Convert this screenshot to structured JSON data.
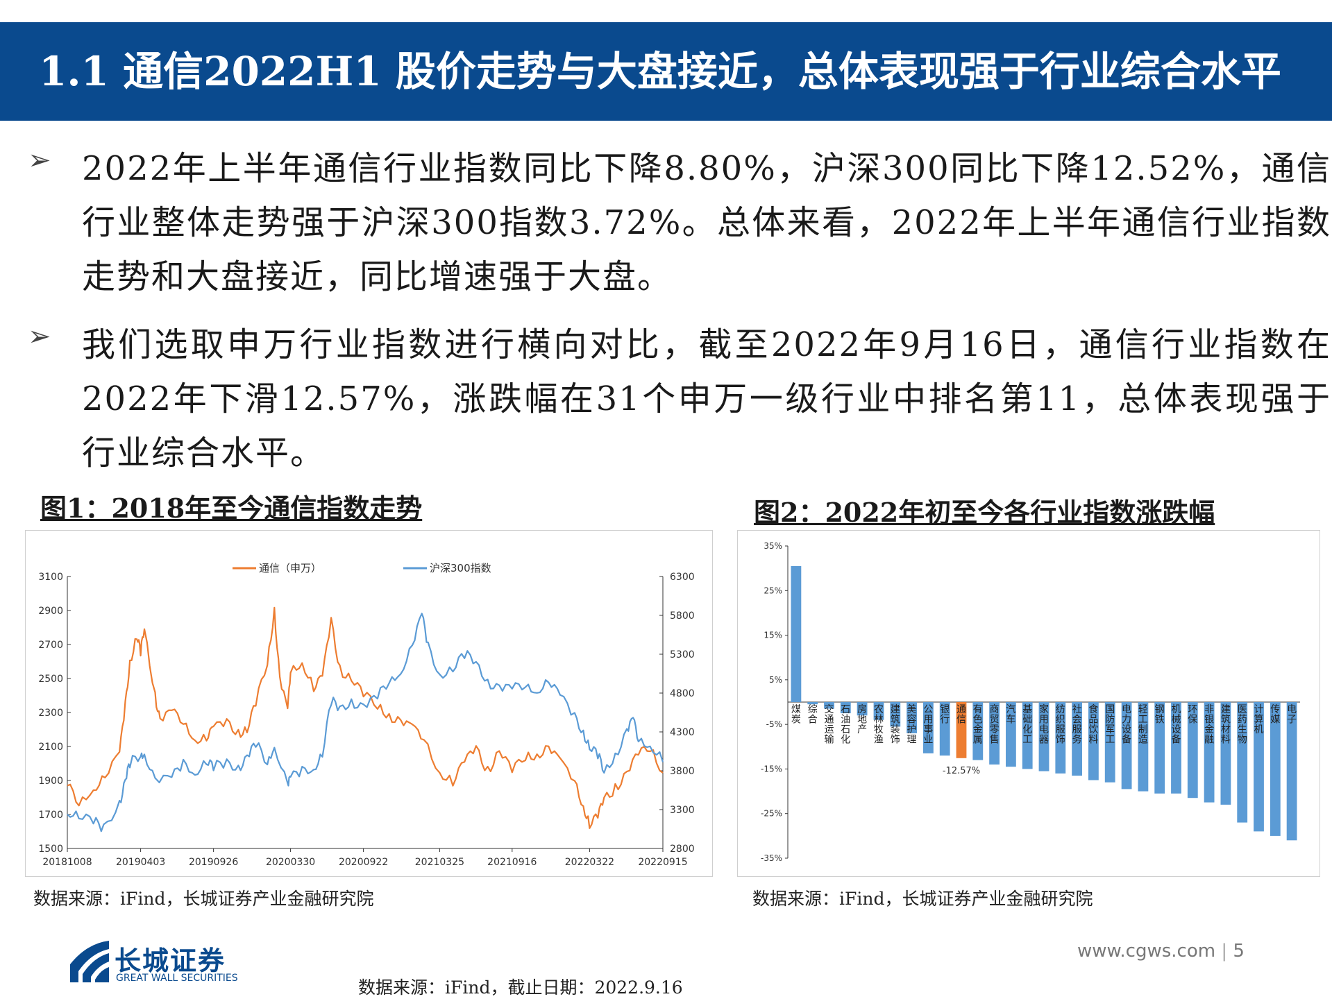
{
  "slide": {
    "title": "1.1 通信2022H1 股价走势与大盘接近，总体表现强于行业综合水平",
    "bullet_marker": "Ø",
    "bullets": [
      "2022年上半年通信行业指数同比下降8.80%，沪深300同比下降12.52%，通信行业整体走势强于沪深300指数3.72%。总体来看，2022年上半年通信行业指数走势和大盘接近，同比增速强于大盘。",
      "我们选取申万行业指数进行横向对比，截至2022年9月16日，通信行业指数在2022年下滑12.57%，涨跌幅在31个申万一级行业中排名第11，总体表现强于行业综合水平。"
    ],
    "fig1_title": "图1：2018年至今通信指数走势",
    "fig2_title": "图2：2022年初至今各行业指数涨跌幅",
    "source1": "数据来源：iFind，长城证券产业金融研究院",
    "source2": "数据来源：iFind，长城证券产业金融研究院",
    "bottom_source": "数据来源：iFind，截止日期：2022.9.16",
    "website": "www.cgws.com",
    "page_number": "5",
    "logo_cn": "长城证券",
    "logo_en": "GREAT WALL SECURITIES"
  },
  "chart_data": [
    {
      "type": "line",
      "x_ticks": [
        "20181008",
        "20190403",
        "20190926",
        "20200330",
        "20200922",
        "20210325",
        "20210916",
        "20220322",
        "20220915"
      ],
      "y_left_ticks": [
        "1500",
        "1700",
        "1900",
        "2100",
        "2300",
        "2500",
        "2700",
        "2900",
        "3100"
      ],
      "y_right_ticks": [
        "2800",
        "3300",
        "3800",
        "4300",
        "4800",
        "5300",
        "5800",
        "6300"
      ],
      "ylim_left": [
        1500,
        3100
      ],
      "ylim_right": [
        2800,
        6300
      ],
      "legend_position": "top",
      "series": [
        {
          "name": "通信（申万）",
          "axis": "left",
          "color": "#ed7d31",
          "x": [
            "2018-10-08",
            "2018-11-05",
            "2018-12-10",
            "2019-01-07",
            "2019-02-11",
            "2019-02-25",
            "2019-03-08",
            "2019-03-25",
            "2019-04-03",
            "2019-04-12",
            "2019-05-08",
            "2019-05-20",
            "2019-06-17",
            "2019-07-15",
            "2019-08-12",
            "2019-09-09",
            "2019-09-26",
            "2019-10-28",
            "2019-11-25",
            "2019-12-16",
            "2020-01-06",
            "2020-02-03",
            "2020-02-20",
            "2020-03-04",
            "2020-03-23",
            "2020-03-30",
            "2020-04-27",
            "2020-05-25",
            "2020-06-15",
            "2020-07-06",
            "2020-07-27",
            "2020-08-24",
            "2020-09-22",
            "2020-10-26",
            "2020-11-23",
            "2020-12-21",
            "2021-01-18",
            "2021-02-15",
            "2021-03-25",
            "2021-04-26",
            "2021-05-24",
            "2021-06-21",
            "2021-07-19",
            "2021-08-16",
            "2021-09-16",
            "2021-10-18",
            "2021-11-15",
            "2021-12-13",
            "2022-01-10",
            "2022-02-14",
            "2022-03-07",
            "2022-03-22",
            "2022-04-11",
            "2022-04-26",
            "2022-05-23",
            "2022-06-20",
            "2022-07-18",
            "2022-08-15",
            "2022-09-15"
          ],
          "values": [
            1870,
            1770,
            1860,
            1920,
            2050,
            2350,
            2600,
            2750,
            2650,
            2800,
            2400,
            2250,
            2300,
            2250,
            2150,
            2150,
            2200,
            2250,
            2180,
            2200,
            2350,
            2600,
            2900,
            2500,
            2300,
            2550,
            2600,
            2450,
            2500,
            2850,
            2550,
            2500,
            2400,
            2350,
            2280,
            2250,
            2200,
            2150,
            1950,
            1900,
            2000,
            2100,
            1950,
            2080,
            1950,
            2050,
            2050,
            2100,
            2000,
            1900,
            1750,
            1650,
            1680,
            1800,
            1850,
            1950,
            2050,
            2100,
            1950
          ]
        },
        {
          "name": "沪深300指数",
          "axis": "right",
          "color": "#5b9bd5",
          "x": [
            "2018-10-08",
            "2018-11-05",
            "2018-12-10",
            "2019-01-04",
            "2019-02-11",
            "2019-02-25",
            "2019-03-08",
            "2019-04-03",
            "2019-04-12",
            "2019-05-08",
            "2019-06-17",
            "2019-07-15",
            "2019-08-12",
            "2019-09-09",
            "2019-09-26",
            "2019-10-28",
            "2019-11-25",
            "2019-12-16",
            "2020-01-06",
            "2020-02-03",
            "2020-02-20",
            "2020-03-23",
            "2020-03-30",
            "2020-04-27",
            "2020-05-25",
            "2020-06-15",
            "2020-07-06",
            "2020-07-27",
            "2020-08-24",
            "2020-09-22",
            "2020-10-26",
            "2020-11-23",
            "2020-12-21",
            "2021-01-18",
            "2021-02-10",
            "2021-02-25",
            "2021-03-25",
            "2021-04-26",
            "2021-05-24",
            "2021-06-21",
            "2021-07-19",
            "2021-08-16",
            "2021-09-16",
            "2021-10-18",
            "2021-11-15",
            "2021-12-13",
            "2022-01-10",
            "2022-02-14",
            "2022-03-07",
            "2022-03-22",
            "2022-04-11",
            "2022-04-26",
            "2022-05-23",
            "2022-06-20",
            "2022-07-05",
            "2022-07-18",
            "2022-08-15",
            "2022-09-15"
          ],
          "values": [
            3300,
            3200,
            3150,
            3050,
            3400,
            3650,
            3900,
            4000,
            4050,
            3650,
            3700,
            3900,
            3800,
            3900,
            3850,
            3900,
            3850,
            3950,
            4150,
            3900,
            4150,
            3600,
            3700,
            3800,
            3850,
            4000,
            4700,
            4600,
            4700,
            4600,
            4750,
            4950,
            5100,
            5400,
            5800,
            5400,
            5050,
            5100,
            5300,
            5200,
            4950,
            4850,
            4850,
            4900,
            4850,
            4950,
            4750,
            4500,
            4300,
            4100,
            4000,
            3800,
            4000,
            4300,
            4450,
            4200,
            4150,
            3950
          ]
        }
      ]
    },
    {
      "type": "bar",
      "categories": [
        "煤炭",
        "综合",
        "交通运输",
        "石油石化",
        "房地产",
        "农林牧渔",
        "建筑装饰",
        "美容护理",
        "公用事业",
        "银行",
        "通信",
        "有色金属",
        "商贸零售",
        "汽车",
        "基础化工",
        "家用电器",
        "纺织服饰",
        "社会服务",
        "食品饮料",
        "国防军工",
        "电力设备",
        "轻工制造",
        "钢铁",
        "机械设备",
        "环保",
        "非银金融",
        "建筑材料",
        "医药生物",
        "计算机",
        "传媒",
        "电子"
      ],
      "values": [
        30.5,
        -0.5,
        -1.5,
        -2.5,
        -3.0,
        -4.0,
        -5.5,
        -7.0,
        -11.5,
        -12.0,
        -12.57,
        -13.0,
        -14.0,
        -14.5,
        -15.0,
        -15.5,
        -16.0,
        -16.5,
        -17.5,
        -18.0,
        -19.5,
        -20.0,
        -20.5,
        -20.5,
        -21.5,
        -22.5,
        -23.0,
        -27.0,
        -29.0,
        -30.0,
        -31.0
      ],
      "highlight_category": "通信",
      "highlight_color": "#ed7d31",
      "bar_color": "#5b9bd5",
      "data_label": "-12.57%",
      "y_ticks": [
        "35%",
        "25%",
        "15%",
        "5%",
        "-5%",
        "-15%",
        "-25%",
        "-35%"
      ],
      "ylim": [
        -35,
        35
      ]
    }
  ]
}
